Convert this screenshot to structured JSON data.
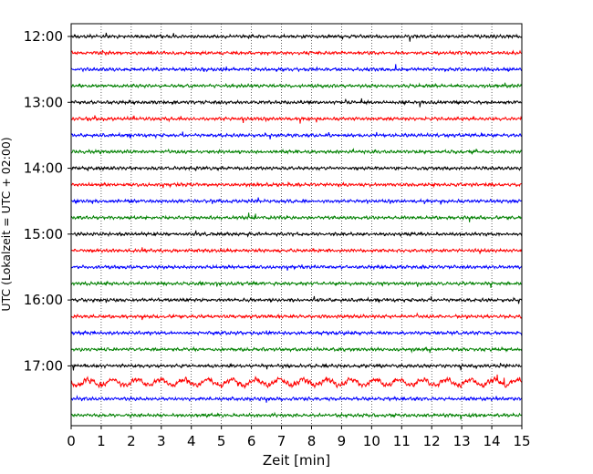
{
  "chart_data": {
    "type": "line",
    "title": "",
    "xlabel": "Zeit  [min]",
    "ylabel": "UTC (Lokalzeit = UTC + 02:00)",
    "xlim": [
      0,
      15
    ],
    "x_ticks": [
      0,
      1,
      2,
      3,
      4,
      5,
      6,
      7,
      8,
      9,
      10,
      11,
      12,
      13,
      14,
      15
    ],
    "x_tick_labels": [
      "0",
      "1",
      "2",
      "3",
      "4",
      "5",
      "6",
      "7",
      "8",
      "9",
      "10",
      "11",
      "12",
      "13",
      "14",
      "15"
    ],
    "y_tick_labels": [
      "12:00",
      "13:00",
      "14:00",
      "15:00",
      "16:00",
      "17:00"
    ],
    "grid": "vertical dotted",
    "legend": "none",
    "trace_interval_min": 15,
    "series": [
      {
        "start": "12:00",
        "color": "#000000",
        "amplitude": 1.0
      },
      {
        "start": "12:15",
        "color": "#ff0000",
        "amplitude": 1.0
      },
      {
        "start": "12:30",
        "color": "#0000ff",
        "amplitude": 1.0
      },
      {
        "start": "12:45",
        "color": "#008000",
        "amplitude": 1.0
      },
      {
        "start": "13:00",
        "color": "#000000",
        "amplitude": 1.0
      },
      {
        "start": "13:15",
        "color": "#ff0000",
        "amplitude": 1.0
      },
      {
        "start": "13:30",
        "color": "#0000ff",
        "amplitude": 1.0
      },
      {
        "start": "13:45",
        "color": "#008000",
        "amplitude": 1.0
      },
      {
        "start": "14:00",
        "color": "#000000",
        "amplitude": 1.0
      },
      {
        "start": "14:15",
        "color": "#ff0000",
        "amplitude": 1.0
      },
      {
        "start": "14:30",
        "color": "#0000ff",
        "amplitude": 1.0
      },
      {
        "start": "14:45",
        "color": "#008000",
        "amplitude": 1.0
      },
      {
        "start": "15:00",
        "color": "#000000",
        "amplitude": 1.0
      },
      {
        "start": "15:15",
        "color": "#ff0000",
        "amplitude": 1.0
      },
      {
        "start": "15:30",
        "color": "#0000ff",
        "amplitude": 1.0
      },
      {
        "start": "15:45",
        "color": "#008000",
        "amplitude": 1.0
      },
      {
        "start": "16:00",
        "color": "#000000",
        "amplitude": 1.0
      },
      {
        "start": "16:15",
        "color": "#ff0000",
        "amplitude": 1.0
      },
      {
        "start": "16:30",
        "color": "#0000ff",
        "amplitude": 1.0
      },
      {
        "start": "16:45",
        "color": "#008000",
        "amplitude": 1.0
      },
      {
        "start": "17:00",
        "color": "#000000",
        "amplitude": 1.0
      },
      {
        "start": "17:15",
        "color": "#ff0000",
        "amplitude": 1.6
      },
      {
        "start": "17:30",
        "color": "#0000ff",
        "amplitude": 1.0
      },
      {
        "start": "17:45",
        "color": "#008000",
        "amplitude": 1.0
      }
    ]
  }
}
